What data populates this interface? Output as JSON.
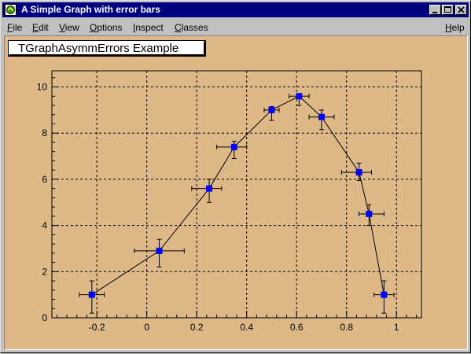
{
  "window": {
    "title": "A Simple Graph with error bars",
    "buttons": [
      "minimize",
      "maximize",
      "close"
    ]
  },
  "menu": {
    "items": [
      {
        "label": "File",
        "mnemonic": "F",
        "rest": "ile"
      },
      {
        "label": "Edit",
        "mnemonic": "E",
        "rest": "dit"
      },
      {
        "label": "View",
        "mnemonic": "V",
        "rest": "iew"
      },
      {
        "label": "Options",
        "mnemonic": "O",
        "rest": "ptions"
      },
      {
        "label": "Inspect",
        "mnemonic": "I",
        "rest": "nspect"
      },
      {
        "label": "Classes",
        "mnemonic": "C",
        "rest": "lasses"
      }
    ],
    "help": {
      "label": "Help",
      "mnemonic": "H",
      "rest": "elp"
    }
  },
  "colors": {
    "titlebar": "#000080",
    "canvas": "#deb887",
    "marker": "#0000ff",
    "line": "#000000",
    "grid": "#000000"
  },
  "chart_data": {
    "type": "scatter",
    "title": "TGraphAsymmErrors Example",
    "xlabel": "",
    "ylabel": "",
    "xlim": [
      -0.38,
      1.1
    ],
    "ylim": [
      0,
      10.7
    ],
    "xticks": [
      -0.2,
      0,
      0.2,
      0.4,
      0.6,
      0.8,
      1
    ],
    "xticklabels": [
      "-0.2",
      "0",
      "0.2",
      "0.4",
      "0.6",
      "0.8",
      "1"
    ],
    "yticks": [
      0,
      2,
      4,
      6,
      8,
      10
    ],
    "yticklabels": [
      "0",
      "2",
      "4",
      "6",
      "8",
      "10"
    ],
    "grid": true,
    "grid_style": "dashed",
    "marker": "square",
    "connected": true,
    "series": [
      {
        "points": [
          {
            "x": -0.22,
            "y": 1.0,
            "exl": 0.05,
            "exh": 0.05,
            "eyl": 0.8,
            "eyh": 0.6
          },
          {
            "x": 0.05,
            "y": 2.9,
            "exl": 0.1,
            "exh": 0.1,
            "eyl": 0.7,
            "eyh": 0.5
          },
          {
            "x": 0.25,
            "y": 5.6,
            "exl": 0.07,
            "exh": 0.05,
            "eyl": 0.6,
            "eyh": 0.4
          },
          {
            "x": 0.35,
            "y": 7.4,
            "exl": 0.07,
            "exh": 0.05,
            "eyl": 0.5,
            "eyh": 0.25
          },
          {
            "x": 0.5,
            "y": 9.0,
            "exl": 0.03,
            "exh": 0.03,
            "eyl": 0.45,
            "eyh": 0.15
          },
          {
            "x": 0.61,
            "y": 9.6,
            "exl": 0.04,
            "exh": 0.04,
            "eyl": 0.4,
            "eyh": 0.1
          },
          {
            "x": 0.7,
            "y": 8.7,
            "exl": 0.05,
            "exh": 0.05,
            "eyl": 0.55,
            "eyh": 0.3
          },
          {
            "x": 0.85,
            "y": 6.3,
            "exl": 0.07,
            "exh": 0.05,
            "eyl": 0.35,
            "eyh": 0.4
          },
          {
            "x": 0.89,
            "y": 4.5,
            "exl": 0.04,
            "exh": 0.06,
            "eyl": 0.5,
            "eyh": 0.4
          },
          {
            "x": 0.95,
            "y": 1.0,
            "exl": 0.04,
            "exh": 0.04,
            "eyl": 0.8,
            "eyh": 0.6
          }
        ]
      }
    ]
  }
}
